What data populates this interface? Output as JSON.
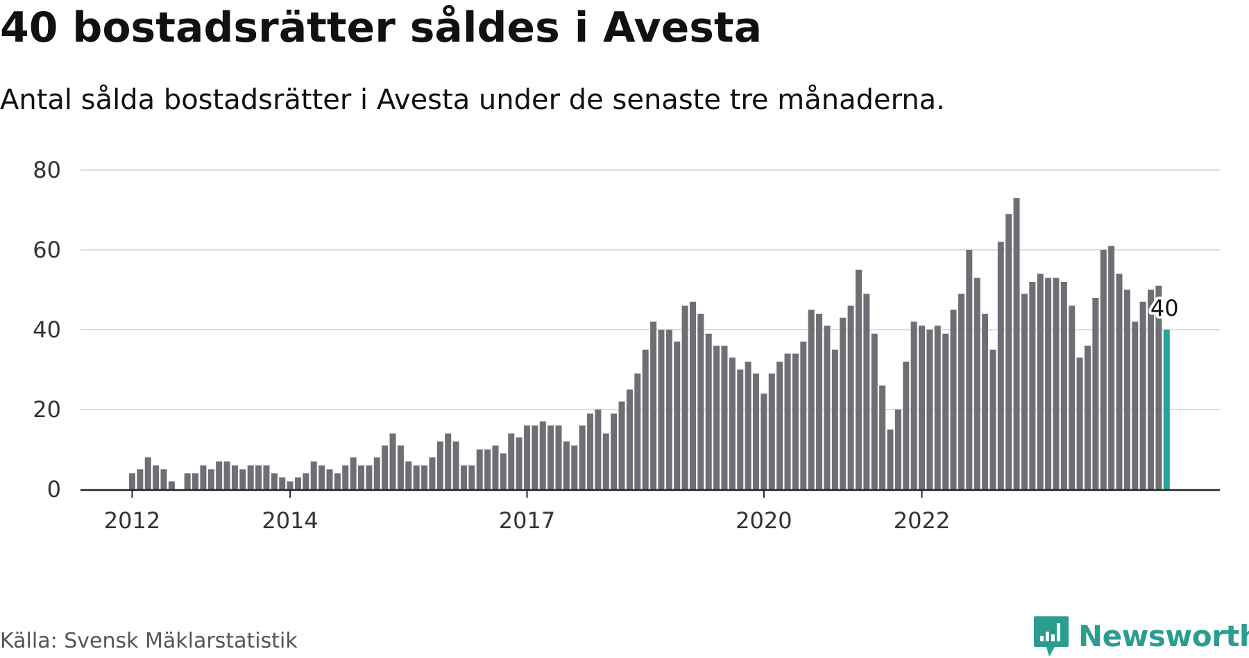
{
  "title": "40 bostadsrätter såldes i Avesta",
  "subtitle": "Antal sålda bostadsrätter i Avesta under de senaste tre månaderna.",
  "source": "Källa: Svensk Mäklarstatistik",
  "logo": {
    "text": "Newsworthy",
    "icon": "newsworthy-logo-icon"
  },
  "colors": {
    "bar": "#6e6e75",
    "highlight": "#23a59b",
    "grid": "#dddddd",
    "axis": "#222222",
    "brand": "#2a9d8f"
  },
  "chart_data": {
    "type": "bar",
    "title": "40 bostadsrätter såldes i Avesta",
    "xlabel": "",
    "ylabel": "",
    "ylim": [
      0,
      80
    ],
    "yticks": [
      0,
      20,
      40,
      60,
      80
    ],
    "xticks": [
      {
        "label": "2012",
        "index": 0
      },
      {
        "label": "2014",
        "index": 20
      },
      {
        "label": "2017",
        "index": 50
      },
      {
        "label": "2020",
        "index": 80
      },
      {
        "label": "2022",
        "index": 100
      }
    ],
    "grid": true,
    "values": [
      4,
      5,
      8,
      6,
      5,
      2,
      0,
      4,
      4,
      6,
      5,
      7,
      7,
      6,
      5,
      6,
      6,
      6,
      4,
      3,
      2,
      3,
      4,
      7,
      6,
      5,
      4,
      6,
      8,
      6,
      6,
      8,
      11,
      14,
      11,
      7,
      6,
      6,
      8,
      12,
      14,
      12,
      6,
      6,
      10,
      10,
      11,
      9,
      14,
      13,
      16,
      16,
      17,
      16,
      16,
      12,
      11,
      16,
      19,
      20,
      14,
      19,
      22,
      25,
      29,
      35,
      42,
      40,
      40,
      37,
      46,
      47,
      44,
      39,
      36,
      36,
      33,
      30,
      32,
      29,
      24,
      29,
      32,
      34,
      34,
      37,
      45,
      44,
      41,
      35,
      43,
      46,
      55,
      49,
      39,
      26,
      15,
      20,
      32,
      42,
      41,
      40,
      41,
      39,
      45,
      49,
      60,
      53,
      44,
      35,
      62,
      69,
      73,
      49,
      52,
      54,
      53,
      53,
      52,
      46,
      33,
      36,
      48,
      60,
      61,
      54,
      50,
      42,
      47,
      50,
      51,
      40
    ],
    "highlight_index": 131,
    "highlight_label": "40"
  }
}
